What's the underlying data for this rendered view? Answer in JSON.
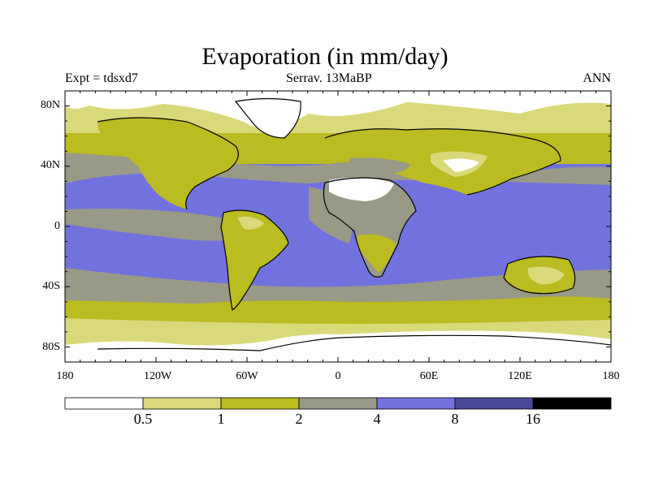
{
  "title": "Evaporation (in mm/day)",
  "left_subtitle": "Expt = tdsxd7",
  "center_subtitle": "Serrav.   13MaBP",
  "right_subtitle": "ANN",
  "lat_labels": [
    "80N",
    "40N",
    "0",
    "40S",
    "80S"
  ],
  "lon_labels": [
    "180",
    "120W",
    "60W",
    "0",
    "60E",
    "120E",
    "180"
  ],
  "colorbar": {
    "colors": [
      "#ffffff",
      "#d9d97a",
      "#bbbb22",
      "#999988",
      "#7272de",
      "#4a4a9a",
      "#000000"
    ],
    "labels": [
      "0.5",
      "1",
      "2",
      "4",
      "8",
      "16"
    ]
  }
}
